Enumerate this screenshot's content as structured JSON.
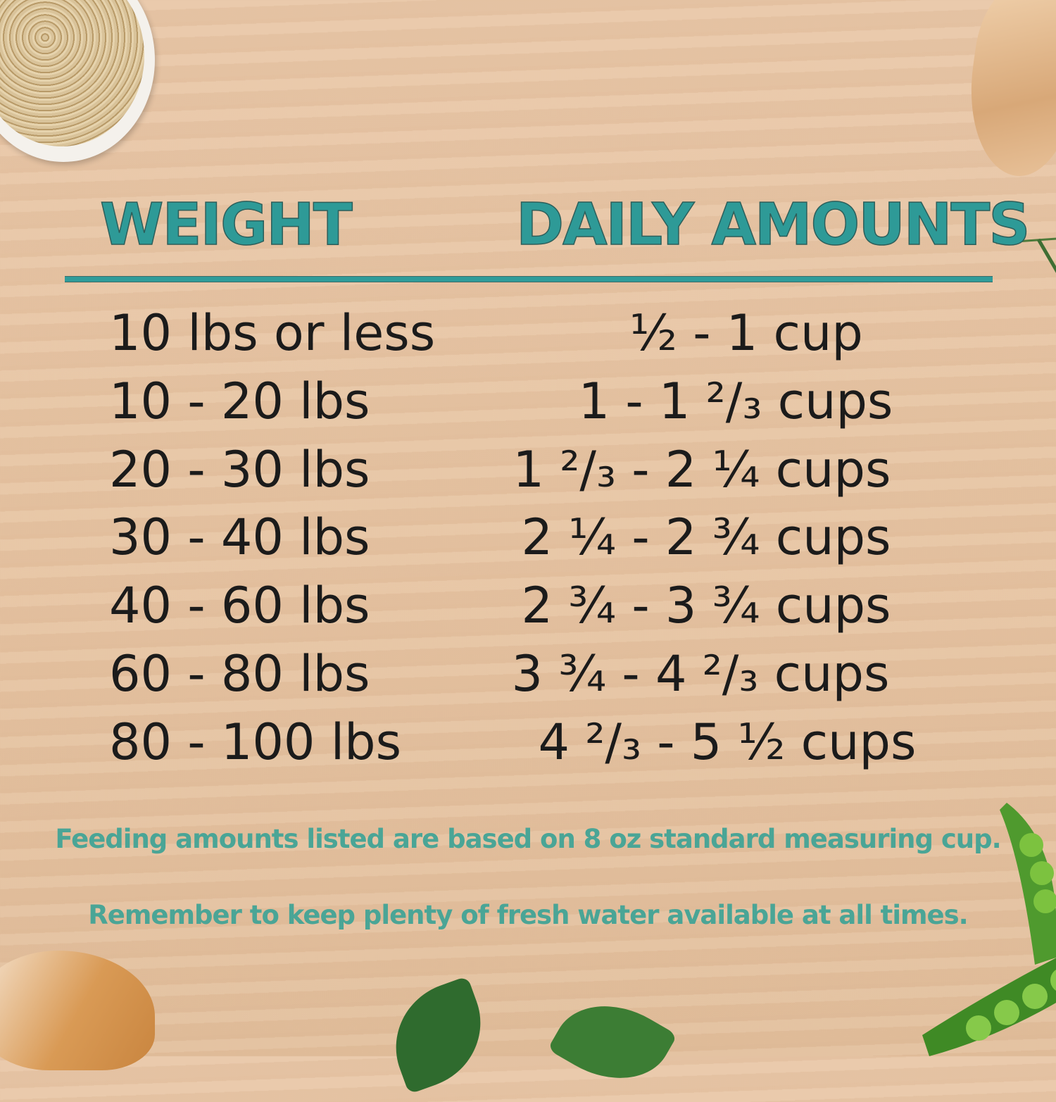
{
  "header": {
    "weight_label": "WEIGHT",
    "amount_label": "DAILY AMOUNTS"
  },
  "rows": [
    {
      "weight": "10 lbs or less",
      "amount": "½ - 1 cup"
    },
    {
      "weight": "10 - 20 lbs",
      "amount": "1 - 1 ²/₃ cups"
    },
    {
      "weight": "20 - 30 lbs",
      "amount": "1 ²/₃ - 2 ¼ cups"
    },
    {
      "weight": "30 - 40 lbs",
      "amount": "2 ¼ - 2 ¾ cups"
    },
    {
      "weight": "40 - 60 lbs",
      "amount": "2 ¾ - 3 ¾ cups"
    },
    {
      "weight": "60 - 80 lbs",
      "amount": "3 ¾ - 4 ²/₃ cups"
    },
    {
      "weight": "80 - 100 lbs",
      "amount": "4 ²/₃ - 5 ½ cups"
    }
  ],
  "notes": {
    "measuring": "Feeding amounts listed are based on 8 oz standard measuring cup.",
    "water": "Remember to keep plenty of fresh water available at all times."
  },
  "colors": {
    "accent": "#2e9a97",
    "note": "#4aa596",
    "text": "#1b1b1b",
    "background": "#e6c4a3"
  }
}
